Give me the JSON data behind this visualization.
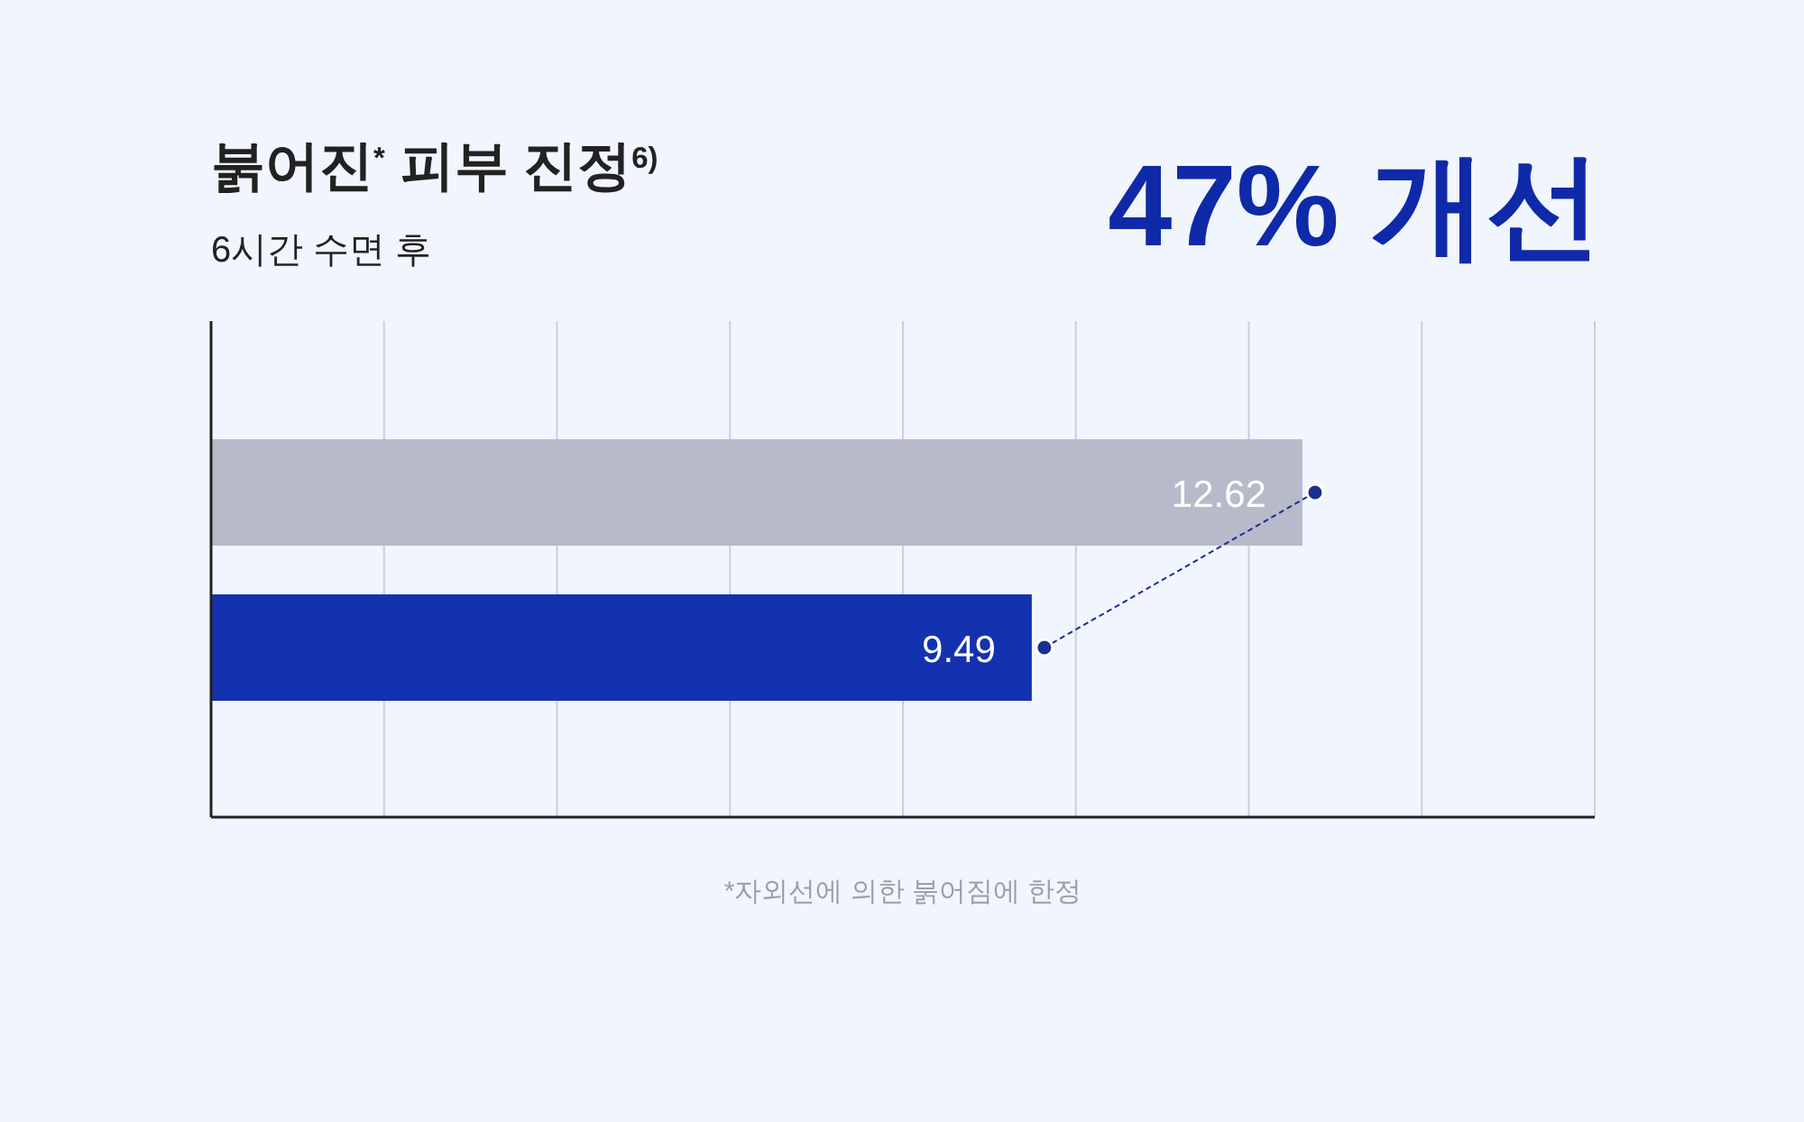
{
  "chart_data": {
    "type": "bar",
    "orientation": "horizontal",
    "title": "붉어진$^{*}$ 피부 진정$^{6)}$",
    "subtitle": "6시간 수면 후",
    "categories": [
      null,
      null
    ],
    "values": [
      12.62,
      9.49
    ],
    "colors": [
      "#b7bac9",
      "#1432b0"
    ],
    "xlim": [
      0,
      16
    ],
    "xticks": [
      {
        "value": 0,
        "label": null
      },
      {
        "value": 2,
        "label": null
      },
      {
        "value": 4,
        "label": null
      },
      {
        "value": 6,
        "label": null
      },
      {
        "value": 8,
        "label": null
      },
      {
        "value": 10,
        "label": null
      },
      {
        "value": 12,
        "label": null
      },
      {
        "value": 14,
        "label": null
      },
      {
        "value": 16,
        "label": null
      }
    ],
    "grid": "x",
    "data_labels": true,
    "annotations": [
      "47% 개선",
      "*자외선에 의한 붉어짐에 한정"
    ]
  }
}
